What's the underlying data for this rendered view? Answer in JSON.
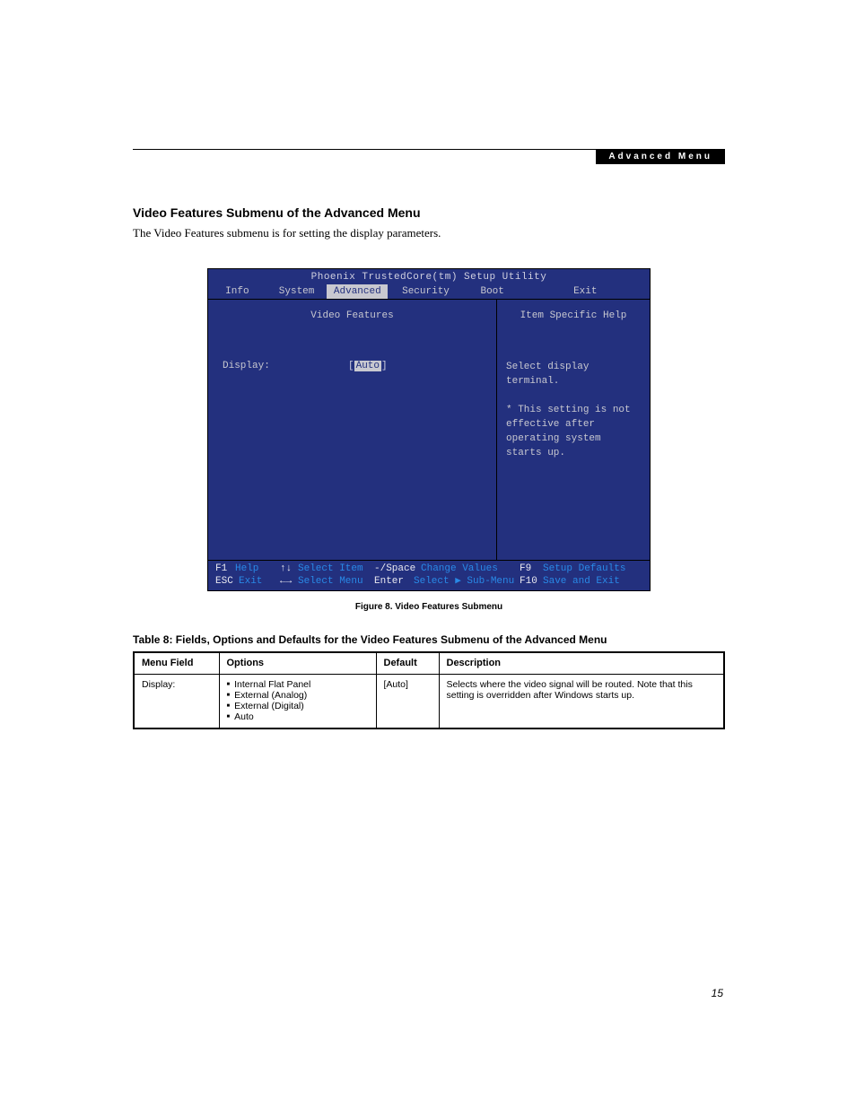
{
  "header": {
    "label": "Advanced Menu"
  },
  "section": {
    "title": "Video Features Submenu of the Advanced Menu",
    "intro": "The Video Features submenu is for setting the display parameters."
  },
  "bios": {
    "title": "Phoenix TrustedCore(tm) Setup Utility",
    "tabs": [
      "Info",
      "System",
      "Advanced",
      "Security",
      "Boot",
      "Exit"
    ],
    "active_tab": "Advanced",
    "tab_widths": [
      65,
      68,
      68,
      85,
      64,
      144
    ],
    "panel_bg": "#23307e",
    "panel_fg": "#c8c8d0",
    "left_header": "Video Features",
    "right_header": "Item Specific Help",
    "field": {
      "label": "Display:",
      "value": "Auto"
    },
    "help_lines": [
      "Select display terminal.",
      "",
      "* This setting is not",
      "effective after",
      "operating system",
      "starts up."
    ],
    "footer": {
      "row1": [
        {
          "key": "F1",
          "action": "Help"
        },
        {
          "arrow": "↑↓",
          "action": "Select Item"
        },
        {
          "key": "-/Space",
          "action": "Change Values"
        },
        {
          "key": "F9",
          "action": "Setup Defaults"
        }
      ],
      "row2": [
        {
          "key": "ESC",
          "action": "Exit"
        },
        {
          "arrow": "←→",
          "action": "Select Menu"
        },
        {
          "key": "Enter",
          "action": "Select ▶ Sub-Menu"
        },
        {
          "key": "F10",
          "action": "Save and Exit"
        }
      ]
    }
  },
  "figure_caption": "Figure 8.  Video Features Submenu",
  "table_caption": "Table 8: Fields, Options and Defaults for the Video Features Submenu of the Advanced Menu",
  "table": {
    "headers": [
      "Menu Field",
      "Options",
      "Default",
      "Description"
    ],
    "rows": [
      {
        "field": "Display:",
        "options": [
          "Internal Flat Panel",
          "External (Analog)",
          "External (Digital)",
          "Auto"
        ],
        "default": "[Auto]",
        "description": "Selects where the video signal will be routed. Note that this setting is overridden after Windows starts up."
      }
    ]
  },
  "page_number": "15"
}
